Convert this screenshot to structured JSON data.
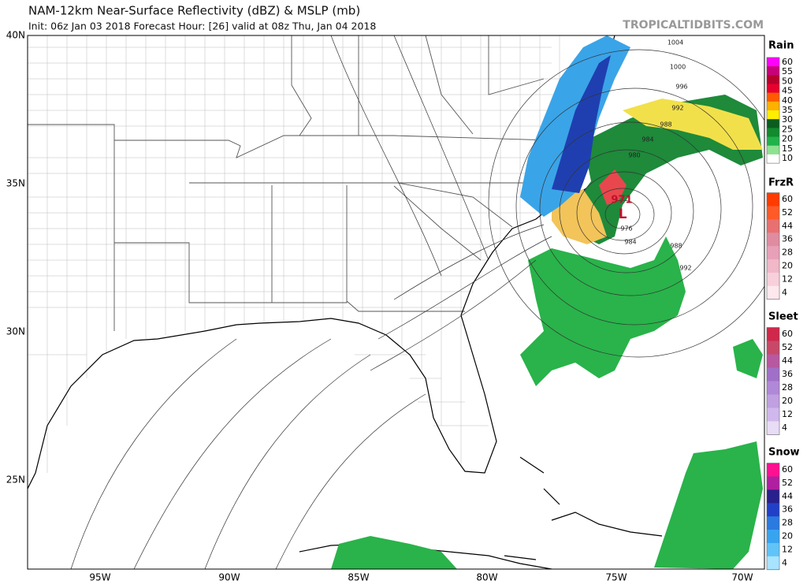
{
  "header": {
    "title": "NAM-12km Near-Surface Reflectivity (dBZ) & MSLP (mb)",
    "subtitle": "Init: 06z Jan 03 2018   Forecast Hour: [26]   valid at 08z Thu, Jan 04 2018",
    "site": "TROPICALTIDBITS.COM"
  },
  "map": {
    "lat_labels": [
      "40N",
      "35N",
      "30N",
      "25N"
    ],
    "lon_labels": [
      "95W",
      "90W",
      "85W",
      "80W",
      "75W",
      "70W"
    ],
    "isobar_labels": [
      1004,
      1000,
      996,
      992,
      988,
      984,
      980,
      976,
      984,
      988,
      992
    ],
    "low_pressure": 971,
    "low_symbol": "L"
  },
  "legends": [
    {
      "title": "Rain",
      "ticks": [
        60,
        55,
        50,
        45,
        40,
        35,
        30,
        25,
        20,
        15,
        10
      ]
    },
    {
      "title": "FrzR",
      "ticks": [
        60,
        52,
        44,
        36,
        28,
        20,
        12,
        4
      ]
    },
    {
      "title": "Sleet",
      "ticks": [
        60,
        52,
        44,
        36,
        28,
        20,
        12,
        4
      ]
    },
    {
      "title": "Snow",
      "ticks": [
        60,
        52,
        44,
        36,
        28,
        20,
        12,
        4
      ]
    }
  ]
}
